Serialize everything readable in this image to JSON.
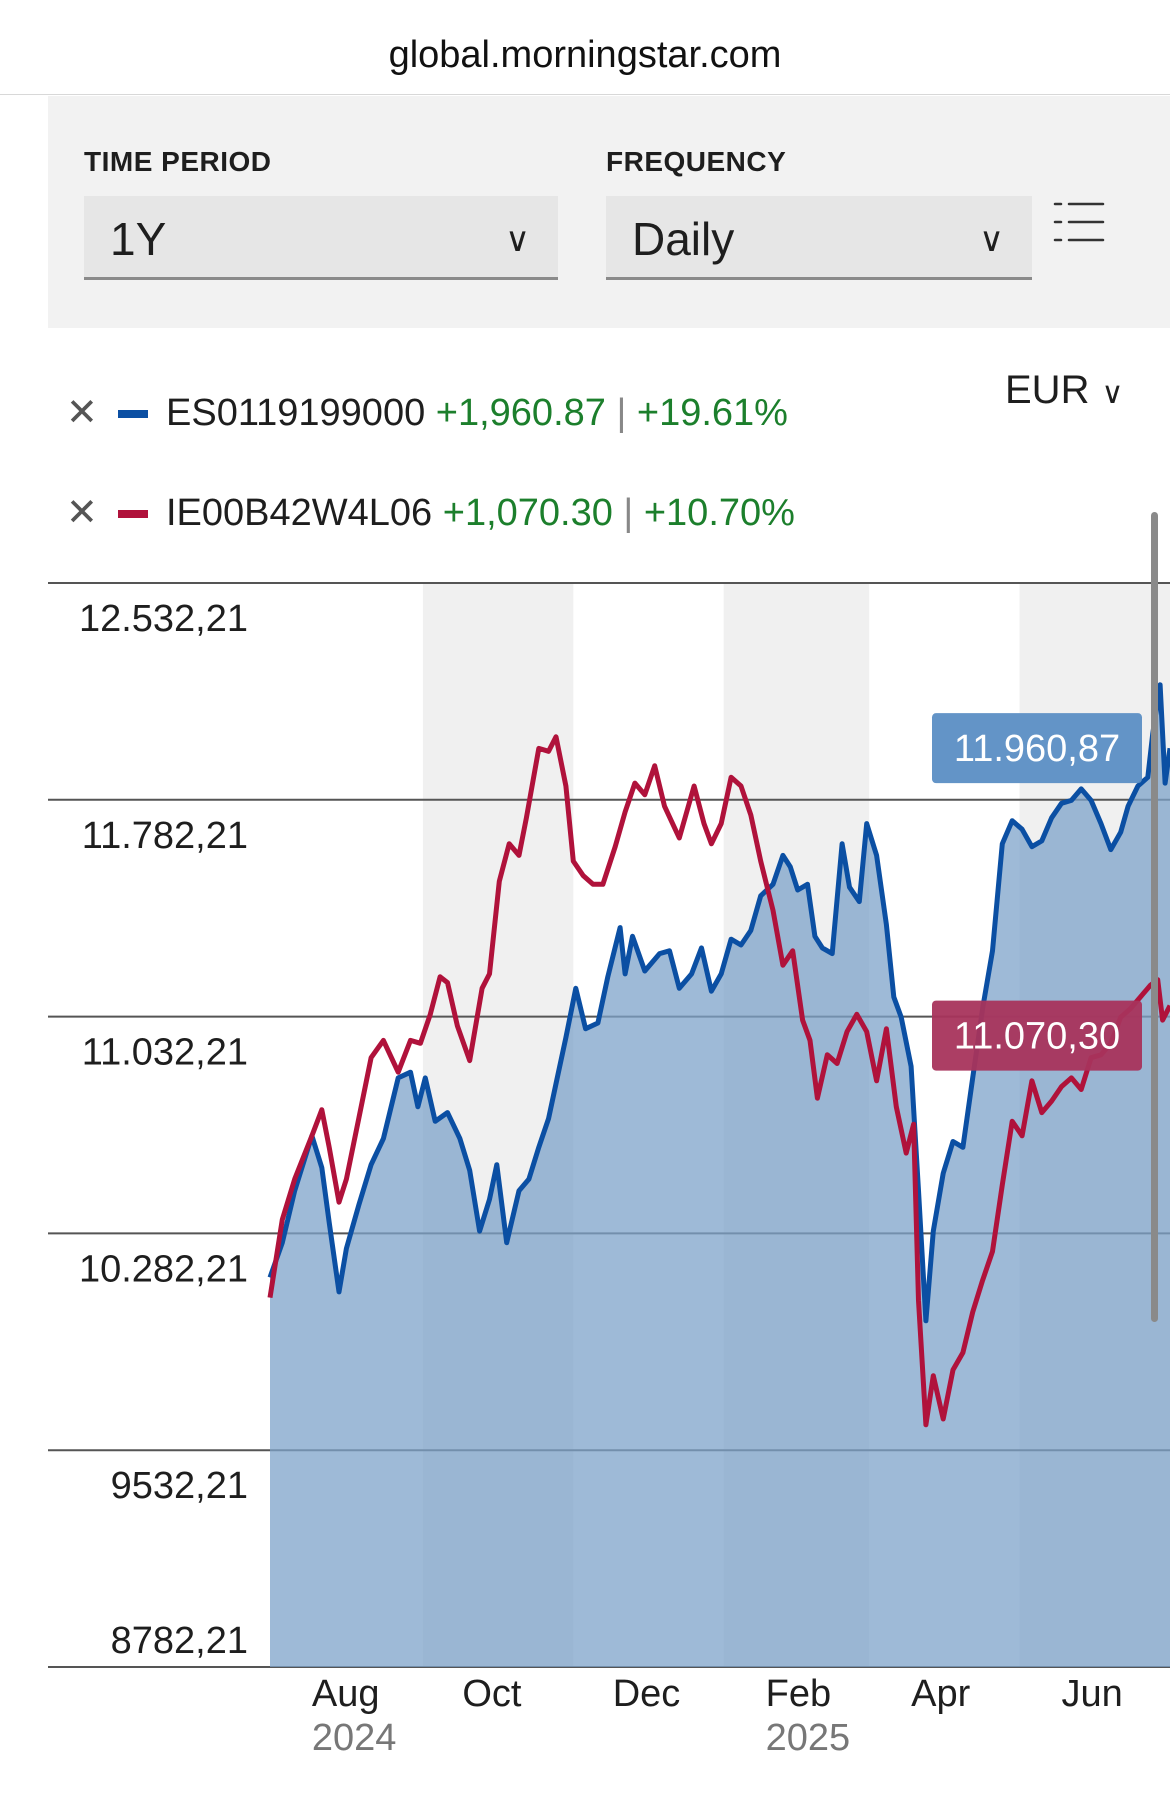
{
  "browser": {
    "url": "global.morningstar.com"
  },
  "controls": {
    "time_period": {
      "label": "TIME PERIOD",
      "value": "1Y"
    },
    "frequency": {
      "label": "FREQUENCY",
      "value": "Daily"
    },
    "list_icon": "list-icon",
    "chevron_icon": "chevron-down-icon"
  },
  "currency": {
    "value": "EUR"
  },
  "legend": [
    {
      "remove_icon": "close-icon",
      "code": "ES0119199000",
      "change": "+1,960.87",
      "separator": "|",
      "pct": "+19.61%",
      "color": "#0b4fa3"
    },
    {
      "remove_icon": "close-icon",
      "code": "IE00B42W4L06",
      "change": "+1,070.30",
      "separator": "|",
      "pct": "+10.70%",
      "color": "#b0123b"
    }
  ],
  "chart_data": {
    "type": "line",
    "y_ticks": [
      "12.532,21",
      "11.782,21",
      "11.032,21",
      "10.282,21",
      "9532,21",
      "8782,21"
    ],
    "y_tick_values": [
      12532.21,
      11782.21,
      11032.21,
      10282.21,
      9532.21,
      8782.21
    ],
    "ylim": [
      8782.21,
      12532.21
    ],
    "x_ticks": [
      {
        "label": "Aug",
        "year": "2024",
        "date": "2024-08-01"
      },
      {
        "label": "Oct",
        "year": "",
        "date": "2024-10-01"
      },
      {
        "label": "Dec",
        "year": "",
        "date": "2024-12-01"
      },
      {
        "label": "Feb",
        "year": "2025",
        "date": "2025-02-01"
      },
      {
        "label": "Apr",
        "year": "",
        "date": "2025-04-01"
      },
      {
        "label": "Jun",
        "year": "",
        "date": "2025-06-01"
      }
    ],
    "xlim": [
      "2024-07-15",
      "2025-07-15"
    ],
    "shaded_bands": [
      [
        "2024-09-15",
        "2024-11-15"
      ],
      [
        "2025-01-15",
        "2025-03-15"
      ],
      [
        "2025-05-15",
        "2025-07-15"
      ]
    ],
    "series": [
      {
        "name": "ES0119199000",
        "color": "#0b4fa3",
        "area": true,
        "end_label": "11.960,87",
        "points": [
          [
            "2024-07-15",
            10130
          ],
          [
            "2024-07-20",
            10250
          ],
          [
            "2024-07-25",
            10430
          ],
          [
            "2024-08-01",
            10620
          ],
          [
            "2024-08-05",
            10510
          ],
          [
            "2024-08-08",
            10320
          ],
          [
            "2024-08-12",
            10080
          ],
          [
            "2024-08-15",
            10230
          ],
          [
            "2024-08-20",
            10380
          ],
          [
            "2024-08-25",
            10520
          ],
          [
            "2024-08-30",
            10610
          ],
          [
            "2024-09-05",
            10820
          ],
          [
            "2024-09-10",
            10840
          ],
          [
            "2024-09-13",
            10720
          ],
          [
            "2024-09-16",
            10820
          ],
          [
            "2024-09-20",
            10670
          ],
          [
            "2024-09-25",
            10700
          ],
          [
            "2024-09-30",
            10610
          ],
          [
            "2024-10-04",
            10500
          ],
          [
            "2024-10-08",
            10290
          ],
          [
            "2024-10-12",
            10400
          ],
          [
            "2024-10-15",
            10520
          ],
          [
            "2024-10-19",
            10250
          ],
          [
            "2024-10-24",
            10430
          ],
          [
            "2024-10-28",
            10470
          ],
          [
            "2024-11-01",
            10580
          ],
          [
            "2024-11-05",
            10680
          ],
          [
            "2024-11-08",
            10800
          ],
          [
            "2024-11-12",
            10960
          ],
          [
            "2024-11-16",
            11130
          ],
          [
            "2024-11-20",
            10990
          ],
          [
            "2024-11-25",
            11010
          ],
          [
            "2024-11-29",
            11170
          ],
          [
            "2024-12-04",
            11340
          ],
          [
            "2024-12-06",
            11180
          ],
          [
            "2024-12-09",
            11310
          ],
          [
            "2024-12-14",
            11190
          ],
          [
            "2024-12-20",
            11250
          ],
          [
            "2024-12-24",
            11260
          ],
          [
            "2024-12-28",
            11130
          ],
          [
            "2025-01-02",
            11180
          ],
          [
            "2025-01-06",
            11270
          ],
          [
            "2025-01-10",
            11120
          ],
          [
            "2025-01-14",
            11180
          ],
          [
            "2025-01-18",
            11300
          ],
          [
            "2025-01-22",
            11280
          ],
          [
            "2025-01-26",
            11330
          ],
          [
            "2025-01-30",
            11450
          ],
          [
            "2025-02-04",
            11490
          ],
          [
            "2025-02-08",
            11590
          ],
          [
            "2025-02-11",
            11550
          ],
          [
            "2025-02-14",
            11470
          ],
          [
            "2025-02-18",
            11490
          ],
          [
            "2025-02-21",
            11310
          ],
          [
            "2025-02-24",
            11270
          ],
          [
            "2025-02-28",
            11250
          ],
          [
            "2025-03-04",
            11630
          ],
          [
            "2025-03-07",
            11480
          ],
          [
            "2025-03-11",
            11430
          ],
          [
            "2025-03-14",
            11700
          ],
          [
            "2025-03-18",
            11590
          ],
          [
            "2025-03-22",
            11350
          ],
          [
            "2025-03-25",
            11100
          ],
          [
            "2025-03-28",
            11030
          ],
          [
            "2025-04-01",
            10860
          ],
          [
            "2025-04-04",
            10430
          ],
          [
            "2025-04-07",
            9980
          ],
          [
            "2025-04-10",
            10290
          ],
          [
            "2025-04-14",
            10490
          ],
          [
            "2025-04-18",
            10600
          ],
          [
            "2025-04-22",
            10580
          ],
          [
            "2025-04-26",
            10820
          ],
          [
            "2025-04-30",
            11060
          ],
          [
            "2025-05-04",
            11260
          ],
          [
            "2025-05-08",
            11630
          ],
          [
            "2025-05-12",
            11710
          ],
          [
            "2025-05-16",
            11680
          ],
          [
            "2025-05-20",
            11620
          ],
          [
            "2025-05-24",
            11640
          ],
          [
            "2025-05-28",
            11720
          ],
          [
            "2025-06-01",
            11770
          ],
          [
            "2025-06-05",
            11780
          ],
          [
            "2025-06-09",
            11820
          ],
          [
            "2025-06-13",
            11780
          ],
          [
            "2025-06-17",
            11700
          ],
          [
            "2025-06-21",
            11610
          ],
          [
            "2025-06-25",
            11670
          ],
          [
            "2025-06-28",
            11760
          ],
          [
            "2025-07-02",
            11830
          ],
          [
            "2025-07-06",
            11860
          ],
          [
            "2025-07-08",
            12010
          ],
          [
            "2025-07-11",
            12180
          ],
          [
            "2025-07-13",
            11840
          ],
          [
            "2025-07-15",
            11960.87
          ]
        ]
      },
      {
        "name": "IE00B42W4L06",
        "color": "#b0123b",
        "area": false,
        "end_label": "11.070,30",
        "points": [
          [
            "2024-07-15",
            10060
          ],
          [
            "2024-07-20",
            10330
          ],
          [
            "2024-07-25",
            10470
          ],
          [
            "2024-08-01",
            10620
          ],
          [
            "2024-08-05",
            10710
          ],
          [
            "2024-08-08",
            10580
          ],
          [
            "2024-08-12",
            10390
          ],
          [
            "2024-08-15",
            10470
          ],
          [
            "2024-08-20",
            10680
          ],
          [
            "2024-08-25",
            10890
          ],
          [
            "2024-08-30",
            10950
          ],
          [
            "2024-09-05",
            10840
          ],
          [
            "2024-09-10",
            10950
          ],
          [
            "2024-09-14",
            10940
          ],
          [
            "2024-09-18",
            11040
          ],
          [
            "2024-09-22",
            11170
          ],
          [
            "2024-09-25",
            11150
          ],
          [
            "2024-09-29",
            11000
          ],
          [
            "2024-10-04",
            10880
          ],
          [
            "2024-10-09",
            11130
          ],
          [
            "2024-10-12",
            11180
          ],
          [
            "2024-10-16",
            11500
          ],
          [
            "2024-10-20",
            11630
          ],
          [
            "2024-10-24",
            11590
          ],
          [
            "2024-10-27",
            11720
          ],
          [
            "2024-11-01",
            11960
          ],
          [
            "2024-11-05",
            11950
          ],
          [
            "2024-11-08",
            12000
          ],
          [
            "2024-11-12",
            11830
          ],
          [
            "2024-11-15",
            11570
          ],
          [
            "2024-11-19",
            11520
          ],
          [
            "2024-11-23",
            11490
          ],
          [
            "2024-11-27",
            11490
          ],
          [
            "2024-12-02",
            11620
          ],
          [
            "2024-12-06",
            11740
          ],
          [
            "2024-12-10",
            11840
          ],
          [
            "2024-12-14",
            11800
          ],
          [
            "2024-12-18",
            11900
          ],
          [
            "2024-12-22",
            11760
          ],
          [
            "2024-12-28",
            11650
          ],
          [
            "2025-01-03",
            11830
          ],
          [
            "2025-01-07",
            11700
          ],
          [
            "2025-01-10",
            11630
          ],
          [
            "2025-01-14",
            11700
          ],
          [
            "2025-01-18",
            11860
          ],
          [
            "2025-01-22",
            11830
          ],
          [
            "2025-01-26",
            11730
          ],
          [
            "2025-01-30",
            11570
          ],
          [
            "2025-02-04",
            11400
          ],
          [
            "2025-02-08",
            11210
          ],
          [
            "2025-02-12",
            11260
          ],
          [
            "2025-02-16",
            11020
          ],
          [
            "2025-02-19",
            10950
          ],
          [
            "2025-02-22",
            10750
          ],
          [
            "2025-02-26",
            10900
          ],
          [
            "2025-03-02",
            10870
          ],
          [
            "2025-03-06",
            10980
          ],
          [
            "2025-03-10",
            11040
          ],
          [
            "2025-03-14",
            10980
          ],
          [
            "2025-03-18",
            10810
          ],
          [
            "2025-03-22",
            10990
          ],
          [
            "2025-03-26",
            10720
          ],
          [
            "2025-03-30",
            10560
          ],
          [
            "2025-04-02",
            10660
          ],
          [
            "2025-04-04",
            10050
          ],
          [
            "2025-04-07",
            9620
          ],
          [
            "2025-04-10",
            9790
          ],
          [
            "2025-04-14",
            9640
          ],
          [
            "2025-04-18",
            9810
          ],
          [
            "2025-04-22",
            9870
          ],
          [
            "2025-04-26",
            10010
          ],
          [
            "2025-04-30",
            10120
          ],
          [
            "2025-05-04",
            10220
          ],
          [
            "2025-05-08",
            10450
          ],
          [
            "2025-05-12",
            10670
          ],
          [
            "2025-05-16",
            10620
          ],
          [
            "2025-05-20",
            10810
          ],
          [
            "2025-05-24",
            10700
          ],
          [
            "2025-05-28",
            10740
          ],
          [
            "2025-06-01",
            10790
          ],
          [
            "2025-06-05",
            10820
          ],
          [
            "2025-06-09",
            10780
          ],
          [
            "2025-06-13",
            10890
          ],
          [
            "2025-06-17",
            10900
          ],
          [
            "2025-06-21",
            10940
          ],
          [
            "2025-06-25",
            11030
          ],
          [
            "2025-06-29",
            11060
          ],
          [
            "2025-07-03",
            11100
          ],
          [
            "2025-07-07",
            11140
          ],
          [
            "2025-07-10",
            11160
          ],
          [
            "2025-07-12",
            11020
          ],
          [
            "2025-07-15",
            11070.3
          ]
        ]
      }
    ]
  }
}
